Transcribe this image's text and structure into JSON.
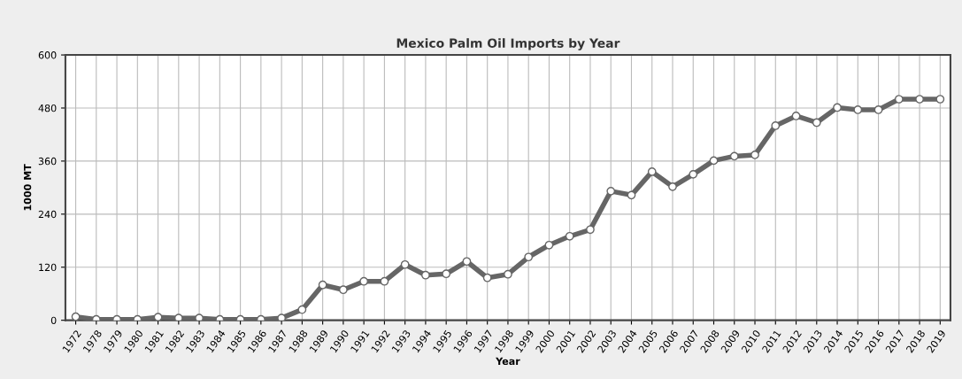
{
  "chart_data": {
    "type": "line",
    "title": "Mexico Palm Oil Imports by Year",
    "xlabel": "Year",
    "ylabel": "1000 MT",
    "categories": [
      "1972",
      "1978",
      "1979",
      "1980",
      "1981",
      "1982",
      "1983",
      "1984",
      "1985",
      "1986",
      "1987",
      "1988",
      "1989",
      "1990",
      "1991",
      "1992",
      "1993",
      "1994",
      "1995",
      "1996",
      "1997",
      "1998",
      "1999",
      "2000",
      "2001",
      "2002",
      "2003",
      "2004",
      "2005",
      "2006",
      "2007",
      "2008",
      "2009",
      "2010",
      "2011",
      "2012",
      "2013",
      "2014",
      "2015",
      "2016",
      "2017",
      "2018",
      "2019"
    ],
    "series": [
      {
        "color": "#666666",
        "values": [
          8,
          2,
          2,
          2,
          7,
          5,
          5,
          2,
          2,
          2,
          5,
          24,
          80,
          69,
          88,
          88,
          126,
          102,
          105,
          133,
          96,
          104,
          143,
          170,
          190,
          205,
          292,
          283,
          336,
          302,
          330,
          361,
          371,
          374,
          440,
          462,
          447,
          481,
          476,
          476,
          500,
          500,
          500
        ]
      }
    ],
    "ylim": [
      0,
      600
    ],
    "yticks": [
      0,
      120,
      240,
      360,
      480,
      600
    ],
    "grid": true,
    "marker": "circle",
    "line_style": "solid"
  }
}
